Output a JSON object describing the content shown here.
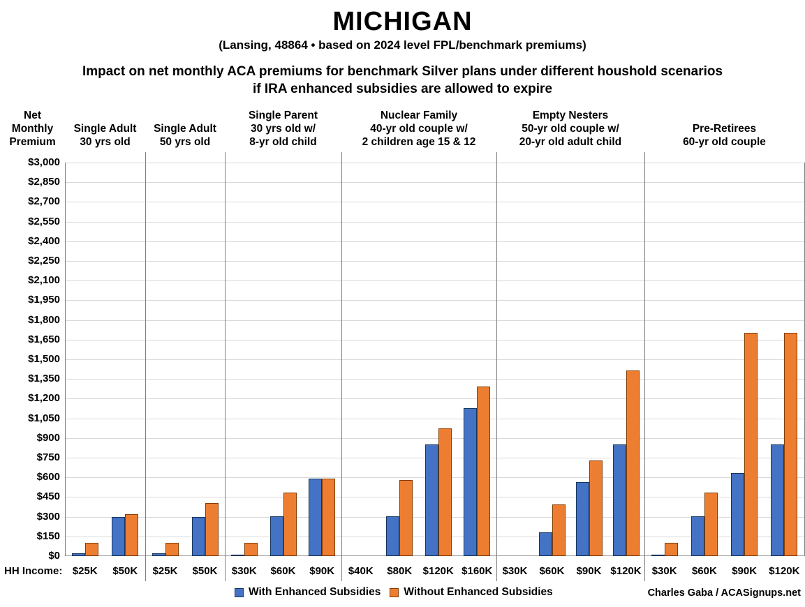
{
  "title": "MICHIGAN",
  "subtitle": "(Lansing, 48864 • based on 2024 level FPL/benchmark premiums)",
  "description_line1": "Impact on net monthly ACA premiums for benchmark Silver plans under different houshold scenarios",
  "description_line2": "if IRA enhanced subsidies are allowed to expire",
  "y_axis_title": "Net Monthly Premium",
  "hh_income_label": "HH Income:",
  "credit": "Charles Gaba / ACASignups.net",
  "colors": {
    "with_enhanced": "#4472C4",
    "without_enhanced": "#ED7D31",
    "with_enhanced_border": "#17365D",
    "without_enhanced_border": "#833C00",
    "gridline": "#D9D9D9",
    "axis_line": "#A6A6A6",
    "separator": "#808080",
    "text": "#000000"
  },
  "chart_data": {
    "type": "bar",
    "title": "MICHIGAN — Impact on net monthly ACA premiums for benchmark Silver plans under different houshold scenarios if IRA enhanced subsidies are allowed to expire",
    "xlabel": "HH Income",
    "ylabel": "Net Monthly Premium",
    "ylim": [
      0,
      3000
    ],
    "ytick_step": 150,
    "ytick_format": "$#,##0",
    "grid": true,
    "legend_position": "bottom",
    "series_names": [
      "With Enhanced Subsidies",
      "Without Enhanced Subsidies"
    ],
    "groups": [
      {
        "header": [
          "Single Adult",
          "30 yrs old"
        ],
        "incomes": [
          "$25K",
          "$50K"
        ],
        "with_enhanced": [
          20,
          300
        ],
        "without_enhanced": [
          100,
          320
        ]
      },
      {
        "header": [
          "Single Adult",
          "50 yrs old"
        ],
        "incomes": [
          "$25K",
          "$50K"
        ],
        "with_enhanced": [
          20,
          300
        ],
        "without_enhanced": [
          100,
          405
        ]
      },
      {
        "header": [
          "Single Parent",
          "30 yrs old w/",
          "8-yr old child"
        ],
        "incomes": [
          "$30K",
          "$60K",
          "$90K"
        ],
        "with_enhanced": [
          8,
          305,
          590
        ],
        "without_enhanced": [
          100,
          485,
          590
        ]
      },
      {
        "header": [
          "Nuclear Family",
          "40-yr old couple w/",
          "2 children age 15 & 12"
        ],
        "incomes": [
          "$40K",
          "$80K",
          "$120K",
          "$160K"
        ],
        "with_enhanced": [
          0,
          305,
          850,
          1130
        ],
        "without_enhanced": [
          0,
          580,
          975,
          1295
        ]
      },
      {
        "header": [
          "Empty Nesters",
          "50-yr old couple w/",
          "20-yr old adult child"
        ],
        "incomes": [
          "$30K",
          "$60K",
          "$90K",
          "$120K"
        ],
        "with_enhanced": [
          0,
          180,
          565,
          850
        ],
        "without_enhanced": [
          0,
          395,
          730,
          1415
        ]
      },
      {
        "header": [
          "Pre-Retirees",
          "60-yr old couple"
        ],
        "incomes": [
          "$30K",
          "$60K",
          "$90K",
          "$120K"
        ],
        "with_enhanced": [
          8,
          305,
          635,
          850
        ],
        "without_enhanced": [
          100,
          485,
          1700,
          1700
        ]
      }
    ]
  }
}
